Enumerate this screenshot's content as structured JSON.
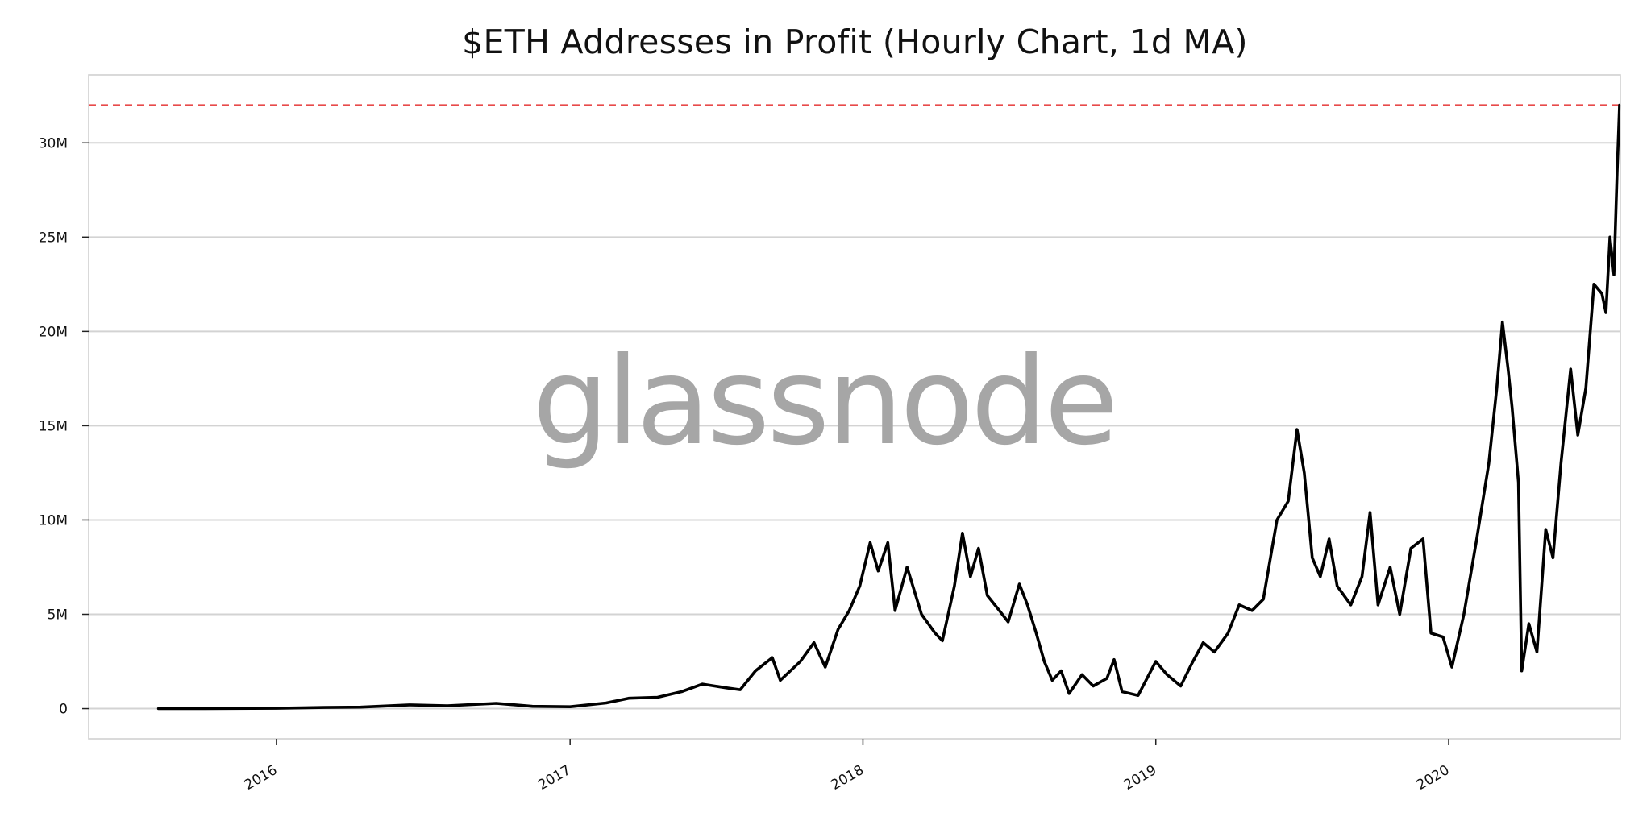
{
  "chart_data": {
    "type": "line",
    "title": "$ETH Addresses in Profit (Hourly Chart, 1d MA)",
    "xlabel": "",
    "ylabel": "",
    "watermark": "glassnode",
    "x_tick_labels": [
      "2016",
      "2017",
      "2018",
      "2019",
      "2020"
    ],
    "y_tick_labels": [
      "0",
      "5M",
      "10M",
      "15M",
      "20M",
      "25M",
      "30M"
    ],
    "y_ticks": [
      0,
      5000000,
      10000000,
      15000000,
      20000000,
      25000000,
      30000000
    ],
    "xlim": [
      "2015-05-12",
      "2020-08-02"
    ],
    "ylim": [
      -1600000,
      33600000
    ],
    "grid": true,
    "reference_line": {
      "y": 32000000,
      "color": "#e84a4a",
      "style": "dashed"
    },
    "line_color": "#000000",
    "series": [
      {
        "points": [
          [
            "2015-08-07",
            0
          ],
          [
            "2015-10-01",
            0
          ],
          [
            "2016-01-01",
            20000
          ],
          [
            "2016-03-01",
            60000
          ],
          [
            "2016-04-15",
            80000
          ],
          [
            "2016-06-15",
            200000
          ],
          [
            "2016-08-01",
            150000
          ],
          [
            "2016-10-01",
            280000
          ],
          [
            "2016-11-15",
            120000
          ],
          [
            "2017-01-01",
            100000
          ],
          [
            "2017-02-15",
            300000
          ],
          [
            "2017-03-15",
            550000
          ],
          [
            "2017-04-20",
            600000
          ],
          [
            "2017-05-20",
            900000
          ],
          [
            "2017-06-15",
            1300000
          ],
          [
            "2017-07-15",
            1100000
          ],
          [
            "2017-08-01",
            1000000
          ],
          [
            "2017-08-20",
            2000000
          ],
          [
            "2017-09-10",
            2700000
          ],
          [
            "2017-09-20",
            1500000
          ],
          [
            "2017-10-15",
            2500000
          ],
          [
            "2017-11-01",
            3500000
          ],
          [
            "2017-11-15",
            2200000
          ],
          [
            "2017-12-01",
            4200000
          ],
          [
            "2017-12-15",
            5200000
          ],
          [
            "2017-12-28",
            6500000
          ],
          [
            "2018-01-10",
            8800000
          ],
          [
            "2018-01-20",
            7300000
          ],
          [
            "2018-02-01",
            8800000
          ],
          [
            "2018-02-10",
            5200000
          ],
          [
            "2018-02-25",
            7500000
          ],
          [
            "2018-03-15",
            5000000
          ],
          [
            "2018-04-01",
            4000000
          ],
          [
            "2018-04-10",
            3600000
          ],
          [
            "2018-04-25",
            6500000
          ],
          [
            "2018-05-05",
            9300000
          ],
          [
            "2018-05-15",
            7000000
          ],
          [
            "2018-05-25",
            8500000
          ],
          [
            "2018-06-05",
            6000000
          ],
          [
            "2018-06-20",
            5200000
          ],
          [
            "2018-07-01",
            4600000
          ],
          [
            "2018-07-15",
            6600000
          ],
          [
            "2018-07-25",
            5500000
          ],
          [
            "2018-08-05",
            4000000
          ],
          [
            "2018-08-15",
            2500000
          ],
          [
            "2018-08-25",
            1500000
          ],
          [
            "2018-09-05",
            2000000
          ],
          [
            "2018-09-15",
            800000
          ],
          [
            "2018-10-01",
            1800000
          ],
          [
            "2018-10-15",
            1200000
          ],
          [
            "2018-11-01",
            1600000
          ],
          [
            "2018-11-10",
            2600000
          ],
          [
            "2018-11-20",
            900000
          ],
          [
            "2018-12-10",
            700000
          ],
          [
            "2019-01-01",
            2500000
          ],
          [
            "2019-01-15",
            1800000
          ],
          [
            "2019-02-01",
            1200000
          ],
          [
            "2019-02-15",
            2400000
          ],
          [
            "2019-03-01",
            3500000
          ],
          [
            "2019-03-15",
            3000000
          ],
          [
            "2019-04-01",
            4000000
          ],
          [
            "2019-04-15",
            5500000
          ],
          [
            "2019-05-01",
            5200000
          ],
          [
            "2019-05-15",
            5800000
          ],
          [
            "2019-06-01",
            10000000
          ],
          [
            "2019-06-15",
            11000000
          ],
          [
            "2019-06-26",
            14800000
          ],
          [
            "2019-07-05",
            12500000
          ],
          [
            "2019-07-15",
            8000000
          ],
          [
            "2019-07-25",
            7000000
          ],
          [
            "2019-08-05",
            9000000
          ],
          [
            "2019-08-15",
            6500000
          ],
          [
            "2019-09-01",
            5500000
          ],
          [
            "2019-09-15",
            7000000
          ],
          [
            "2019-09-25",
            10400000
          ],
          [
            "2019-10-05",
            5500000
          ],
          [
            "2019-10-20",
            7500000
          ],
          [
            "2019-11-01",
            5000000
          ],
          [
            "2019-11-15",
            8500000
          ],
          [
            "2019-11-30",
            9000000
          ],
          [
            "2019-12-10",
            4000000
          ],
          [
            "2019-12-25",
            3800000
          ],
          [
            "2020-01-05",
            2200000
          ],
          [
            "2020-01-20",
            5000000
          ],
          [
            "2020-02-05",
            9000000
          ],
          [
            "2020-02-20",
            13000000
          ],
          [
            "2020-03-01",
            17000000
          ],
          [
            "2020-03-08",
            20500000
          ],
          [
            "2020-03-15",
            18000000
          ],
          [
            "2020-03-20",
            16000000
          ],
          [
            "2020-03-28",
            12000000
          ],
          [
            "2020-04-01",
            2000000
          ],
          [
            "2020-04-10",
            4500000
          ],
          [
            "2020-04-20",
            3000000
          ],
          [
            "2020-05-01",
            9500000
          ],
          [
            "2020-05-10",
            8000000
          ],
          [
            "2020-05-20",
            13000000
          ],
          [
            "2020-06-01",
            18000000
          ],
          [
            "2020-06-10",
            14500000
          ],
          [
            "2020-06-20",
            17000000
          ],
          [
            "2020-06-30",
            22500000
          ],
          [
            "2020-07-10",
            22000000
          ],
          [
            "2020-07-15",
            21000000
          ],
          [
            "2020-07-20",
            25000000
          ],
          [
            "2020-07-25",
            23000000
          ],
          [
            "2020-07-29",
            28500000
          ],
          [
            "2020-08-01",
            32000000
          ]
        ]
      }
    ]
  }
}
